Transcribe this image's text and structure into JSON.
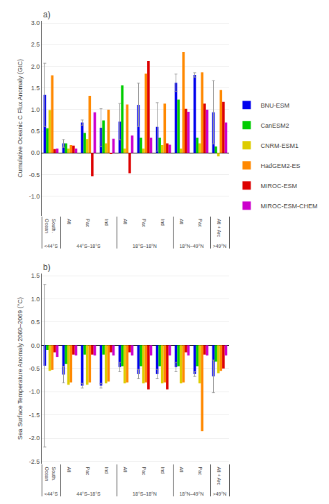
{
  "chart_data": [
    {
      "type": "bar",
      "title": "a)",
      "y_label": "Cumulative Oceanic C Flux Anomaly (GtC)",
      "categories": [
        "South.\nOcean",
        "Atl",
        "Pac",
        "Ind",
        "Atl",
        "Pac",
        "Ind",
        "Atl",
        "Pac",
        "Atl + Arc"
      ],
      "groups": [
        "<44°S",
        "44°S–18°S",
        "44°S–18°S",
        "44°S–18°S",
        "18°S–18°N",
        "18°S–18°N",
        "18°S–18°N",
        "18°N–49°N",
        "18°N–49°N",
        ">49°N"
      ],
      "series": [
        {
          "name": "BNU-ESM",
          "color": "#0000ee",
          "values": [
            1.34,
            0.22,
            0.7,
            0.58,
            0.72,
            1.11,
            0.6,
            1.62,
            1.8,
            0.94
          ],
          "error": [
            0.73,
            0.09,
            0.06,
            0.44,
            0.42,
            0.5,
            0.56,
            0.2,
            0.05,
            0.73
          ]
        },
        {
          "name": "CanESM2",
          "color": "#00cc00",
          "values": [
            0.57,
            0.22,
            0.46,
            0.75,
            1.56,
            0.35,
            0.35,
            1.23,
            0.35,
            0.15
          ]
        },
        {
          "name": "CNRM-ESM1",
          "color": "#ddcc00",
          "values": [
            0.99,
            0.1,
            0.32,
            0.22,
            0.1,
            0.1,
            0.18,
            0.1,
            0.22,
            -0.08
          ]
        },
        {
          "name": "HadGEM2-ES",
          "color": "#ff8800",
          "values": [
            1.79,
            0.18,
            1.32,
            1.0,
            1.12,
            1.83,
            1.14,
            2.33,
            1.86,
            1.45
          ]
        },
        {
          "name": "MIROC-ESM",
          "color": "#dd0000",
          "values": [
            0.09,
            0.17,
            -0.54,
            -0.02,
            -0.47,
            2.12,
            0.22,
            1.02,
            1.14,
            1.18
          ]
        },
        {
          "name": "MIROC-ESM-CHEM",
          "color": "#cc00cc",
          "values": [
            0.1,
            0.1,
            0.94,
            0.33,
            0.4,
            0.35,
            0.19,
            0.95,
            1.0,
            0.7
          ]
        }
      ],
      "ylim": [
        -1.45,
        3.05
      ],
      "yticks": [
        {
          "value": -1.0,
          "label": "-1.0"
        },
        -0.5,
        {
          "value": 0.0,
          "label": "0.0"
        },
        0.5,
        {
          "value": 1.0,
          "label": "1.0"
        },
        1.5,
        {
          "value": 2.0,
          "label": "2.0"
        },
        2.5,
        {
          "value": 3.0,
          "label": "3.0"
        }
      ],
      "grid": true,
      "legend": "right"
    },
    {
      "type": "bar",
      "title": "b)",
      "y_label": "Sea Surface Temperature Anomaly 2060–2069 (°C)",
      "categories": [
        "South.\nOcean",
        "Atl",
        "Pac",
        "Ind",
        "Atl",
        "Pac",
        "Ind",
        "Atl",
        "Pac",
        "Atl + Arc"
      ],
      "groups": [
        "<44°S",
        "44°S–18°S",
        "44°S–18°S",
        "44°S–18°S",
        "18°S–18°N",
        "18°S–18°N",
        "18°S–18°N",
        "18°N–49°N",
        "18°N–49°N",
        ">49°N"
      ],
      "series": [
        {
          "name": "BNU-ESM",
          "color": "#0000ee",
          "values": [
            -0.44,
            -0.63,
            -0.87,
            -0.87,
            -0.47,
            -0.62,
            -0.62,
            -0.47,
            -0.62,
            -0.67
          ],
          "error": [
            1.75,
            0.18,
            0.05,
            0.05,
            0.1,
            0.1,
            0.1,
            0.1,
            0.05,
            0.35
          ]
        },
        {
          "name": "CanESM2",
          "color": "#00cc00",
          "values": [
            -0.1,
            -0.4,
            -0.2,
            -0.2,
            -0.45,
            -0.45,
            -0.45,
            -0.45,
            -0.45,
            -0.35
          ]
        },
        {
          "name": "CNRM-ESM1",
          "color": "#ddcc00",
          "values": [
            -0.55,
            -0.85,
            -0.85,
            -0.82,
            -0.82,
            -0.82,
            -0.82,
            -0.82,
            -0.82,
            -0.6
          ]
        },
        {
          "name": "HadGEM2-ES",
          "color": "#ff8800",
          "values": [
            -0.53,
            -0.8,
            -0.8,
            -0.78,
            -0.8,
            -0.8,
            -0.8,
            -0.8,
            -1.85,
            -0.55
          ]
        },
        {
          "name": "MIROC-ESM",
          "color": "#dd0000",
          "values": [
            -0.15,
            -0.2,
            -0.2,
            -0.15,
            -0.15,
            -0.95,
            -0.95,
            -0.15,
            -0.2,
            -0.5
          ]
        },
        {
          "name": "MIROC-ESM-CHEM",
          "color": "#cc00cc",
          "values": [
            -0.25,
            -0.22,
            -0.22,
            -0.22,
            -0.22,
            -0.22,
            -0.22,
            -0.22,
            -0.22,
            -0.22
          ]
        }
      ],
      "ylim": [
        -2.55,
        1.55
      ],
      "yticks": [
        -2.5,
        {
          "value": -2.0,
          "label": "-2.0"
        },
        -1.5,
        {
          "value": -1.0,
          "label": "-1.0"
        },
        -0.5,
        {
          "value": 0.0,
          "label": "0.0"
        },
        0.5,
        {
          "value": 1.0,
          "label": "1.0"
        },
        1.5
      ],
      "grid": true
    }
  ]
}
